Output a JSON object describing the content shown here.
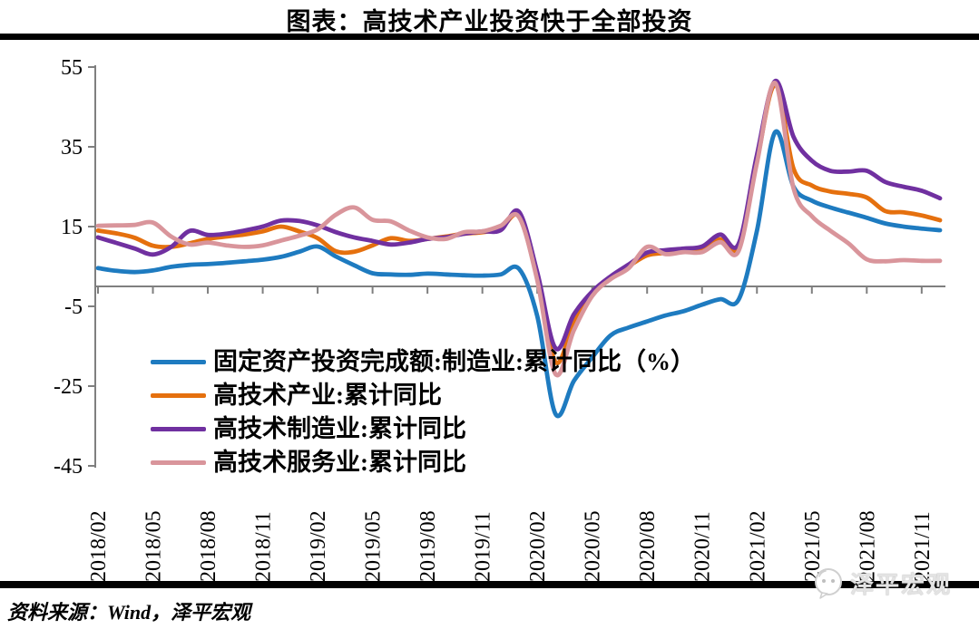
{
  "title": "图表：高技术产业投资快于全部投资",
  "source_note": "资料来源：Wind，泽平宏观",
  "watermark": {
    "text": "泽平宏观"
  },
  "chart_data": {
    "type": "line",
    "title": "图表：高技术产业投资快于全部投资",
    "xlabel": "",
    "ylabel": "",
    "ylim": [
      -45,
      55
    ],
    "y_ticks": [
      55,
      35,
      15,
      -5,
      -25,
      -45
    ],
    "zero_line": true,
    "grid": false,
    "legend_position": "inside-left",
    "axis_color": "#7F7F7F",
    "n_points": 47,
    "points_per_label": 3,
    "x_labels": [
      "2018/02",
      "2018/05",
      "2018/08",
      "2018/11",
      "2019/02",
      "2019/05",
      "2019/08",
      "2019/11",
      "2020/02",
      "2020/05",
      "2020/08",
      "2020/11",
      "2021/02",
      "2021/05",
      "2021/08",
      "2021/11"
    ],
    "series": [
      {
        "name": "固定资产投资完成额:制造业:累计同比（%）",
        "color": "#1E7BC0",
        "values": [
          4.6,
          3.9,
          3.6,
          4.0,
          4.9,
          5.4,
          5.6,
          5.9,
          6.3,
          6.7,
          7.4,
          8.7,
          10.0,
          7.5,
          5.3,
          3.3,
          3.0,
          2.9,
          3.2,
          3.0,
          2.8,
          2.7,
          3.0,
          4.4,
          -7.5,
          -32.0,
          -23.7,
          -17.8,
          -12.3,
          -10.3,
          -8.8,
          -7.3,
          -6.2,
          -4.6,
          -3.2,
          -3.3,
          14.0,
          38.7,
          25.0,
          21.5,
          19.8,
          18.5,
          17.2,
          15.8,
          15.0,
          14.5,
          14.1
        ]
      },
      {
        "name": "高技术产业:累计同比",
        "color": "#E5700E",
        "values": [
          14.0,
          13.3,
          12.2,
          10.2,
          9.9,
          10.8,
          11.9,
          12.5,
          13.0,
          13.8,
          15.0,
          13.8,
          12.1,
          8.8,
          8.7,
          10.3,
          12.1,
          11.4,
          11.9,
          12.5,
          13.2,
          13.6,
          14.5,
          17.5,
          2.0,
          -19.0,
          -9.0,
          -1.8,
          2.2,
          5.1,
          7.8,
          8.4,
          9.0,
          9.3,
          11.8,
          9.8,
          31.5,
          50.5,
          29.5,
          25.3,
          23.8,
          23.2,
          22.3,
          18.9,
          18.6,
          17.8,
          16.6
        ]
      },
      {
        "name": "高技术制造业:累计同比",
        "color": "#7030A0",
        "values": [
          12.3,
          10.9,
          9.5,
          8.0,
          9.9,
          13.9,
          12.9,
          13.2,
          14.0,
          15.0,
          16.5,
          16.4,
          15.3,
          13.6,
          12.3,
          11.4,
          10.5,
          11.0,
          11.9,
          12.3,
          13.2,
          13.8,
          14.1,
          18.7,
          3.5,
          -15.5,
          -7.0,
          -1.3,
          2.5,
          5.5,
          8.5,
          9.1,
          9.5,
          10.0,
          13.0,
          10.7,
          33.0,
          51.5,
          37.5,
          31.5,
          29.0,
          28.8,
          29.0,
          26.2,
          25.0,
          24.0,
          22.1
        ]
      },
      {
        "name": "高技术服务业:累计同比",
        "color": "#D9959B",
        "values": [
          15.2,
          15.3,
          15.4,
          16.0,
          12.5,
          10.5,
          11.0,
          10.3,
          9.9,
          10.3,
          11.5,
          12.7,
          14.3,
          18.0,
          19.8,
          16.7,
          16.3,
          14.0,
          12.3,
          11.9,
          13.6,
          13.8,
          15.2,
          17.4,
          1.5,
          -22.0,
          -11.0,
          -2.4,
          1.8,
          4.6,
          9.9,
          8.1,
          8.6,
          8.6,
          11.1,
          8.9,
          31.0,
          51.0,
          24.6,
          17.6,
          14.0,
          10.8,
          6.8,
          6.3,
          6.6,
          6.4,
          6.4
        ]
      }
    ]
  }
}
